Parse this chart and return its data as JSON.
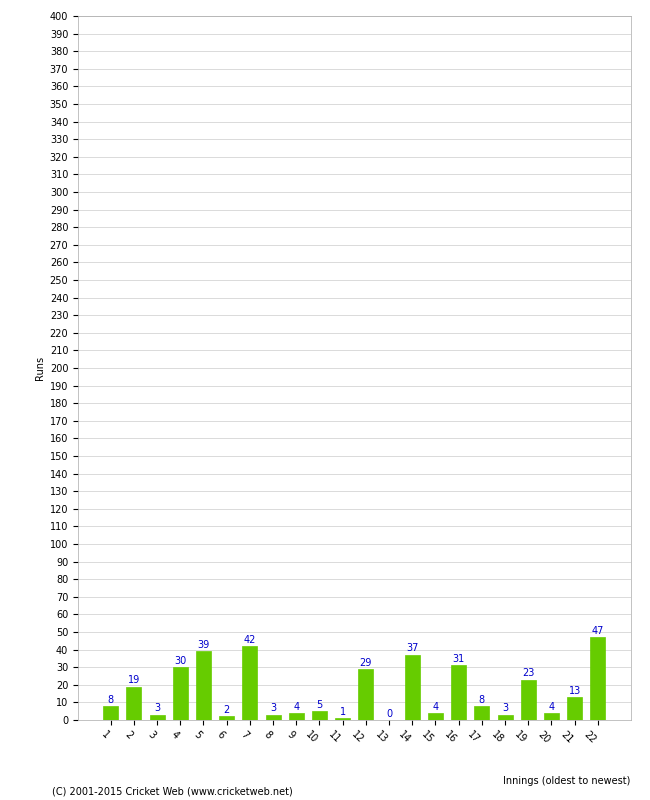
{
  "innings": [
    1,
    2,
    3,
    4,
    5,
    6,
    7,
    8,
    9,
    10,
    11,
    12,
    13,
    14,
    15,
    16,
    17,
    18,
    19,
    20,
    21,
    22
  ],
  "runs": [
    8,
    19,
    3,
    30,
    39,
    2,
    42,
    3,
    4,
    5,
    1,
    29,
    0,
    37,
    4,
    31,
    8,
    3,
    23,
    4,
    13,
    47
  ],
  "bar_color": "#66cc00",
  "bar_edge_color": "#66cc00",
  "label_color": "#0000cc",
  "background_color": "#ffffff",
  "plot_bg_color": "#ffffff",
  "grid_color": "#cccccc",
  "ylabel": "Runs",
  "xlabel": "Innings (oldest to newest)",
  "footer": "(C) 2001-2015 Cricket Web (www.cricketweb.net)",
  "ylim": [
    0,
    400
  ],
  "bar_fontsize": 7,
  "axis_tick_fontsize": 7,
  "axis_label_fontsize": 7,
  "footer_fontsize": 7
}
